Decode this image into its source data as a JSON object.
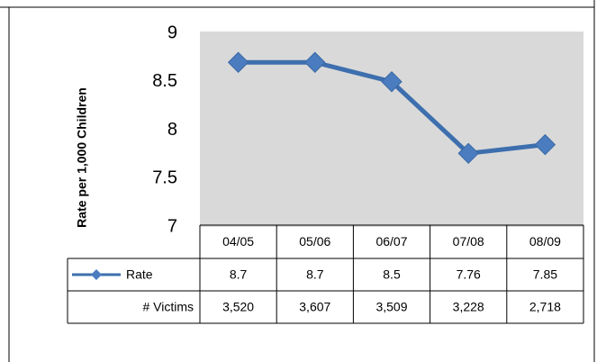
{
  "chart_data": {
    "type": "line",
    "y_label": "Rate per 1,000 Children",
    "categories": [
      "04/05",
      "05/06",
      "06/07",
      "07/08",
      "08/09"
    ],
    "series": [
      {
        "name": "Rate",
        "color": "#3d6fae",
        "values": [
          8.7,
          8.7,
          8.5,
          7.76,
          7.85
        ]
      }
    ],
    "table_rows": [
      {
        "name": "# Victims",
        "values": [
          3520,
          3607,
          3509,
          3228,
          2718
        ],
        "value_labels": [
          "3,520",
          "3,607",
          "3,509",
          "3,228",
          "2,718"
        ]
      }
    ],
    "ylim": [
      7,
      9
    ],
    "yticks": [
      7,
      {
        "value": 7.5,
        "label": "7.5"
      },
      8,
      {
        "value": 8.5,
        "label": "8.5"
      },
      9
    ],
    "plot_background": "#d9d9d9"
  }
}
